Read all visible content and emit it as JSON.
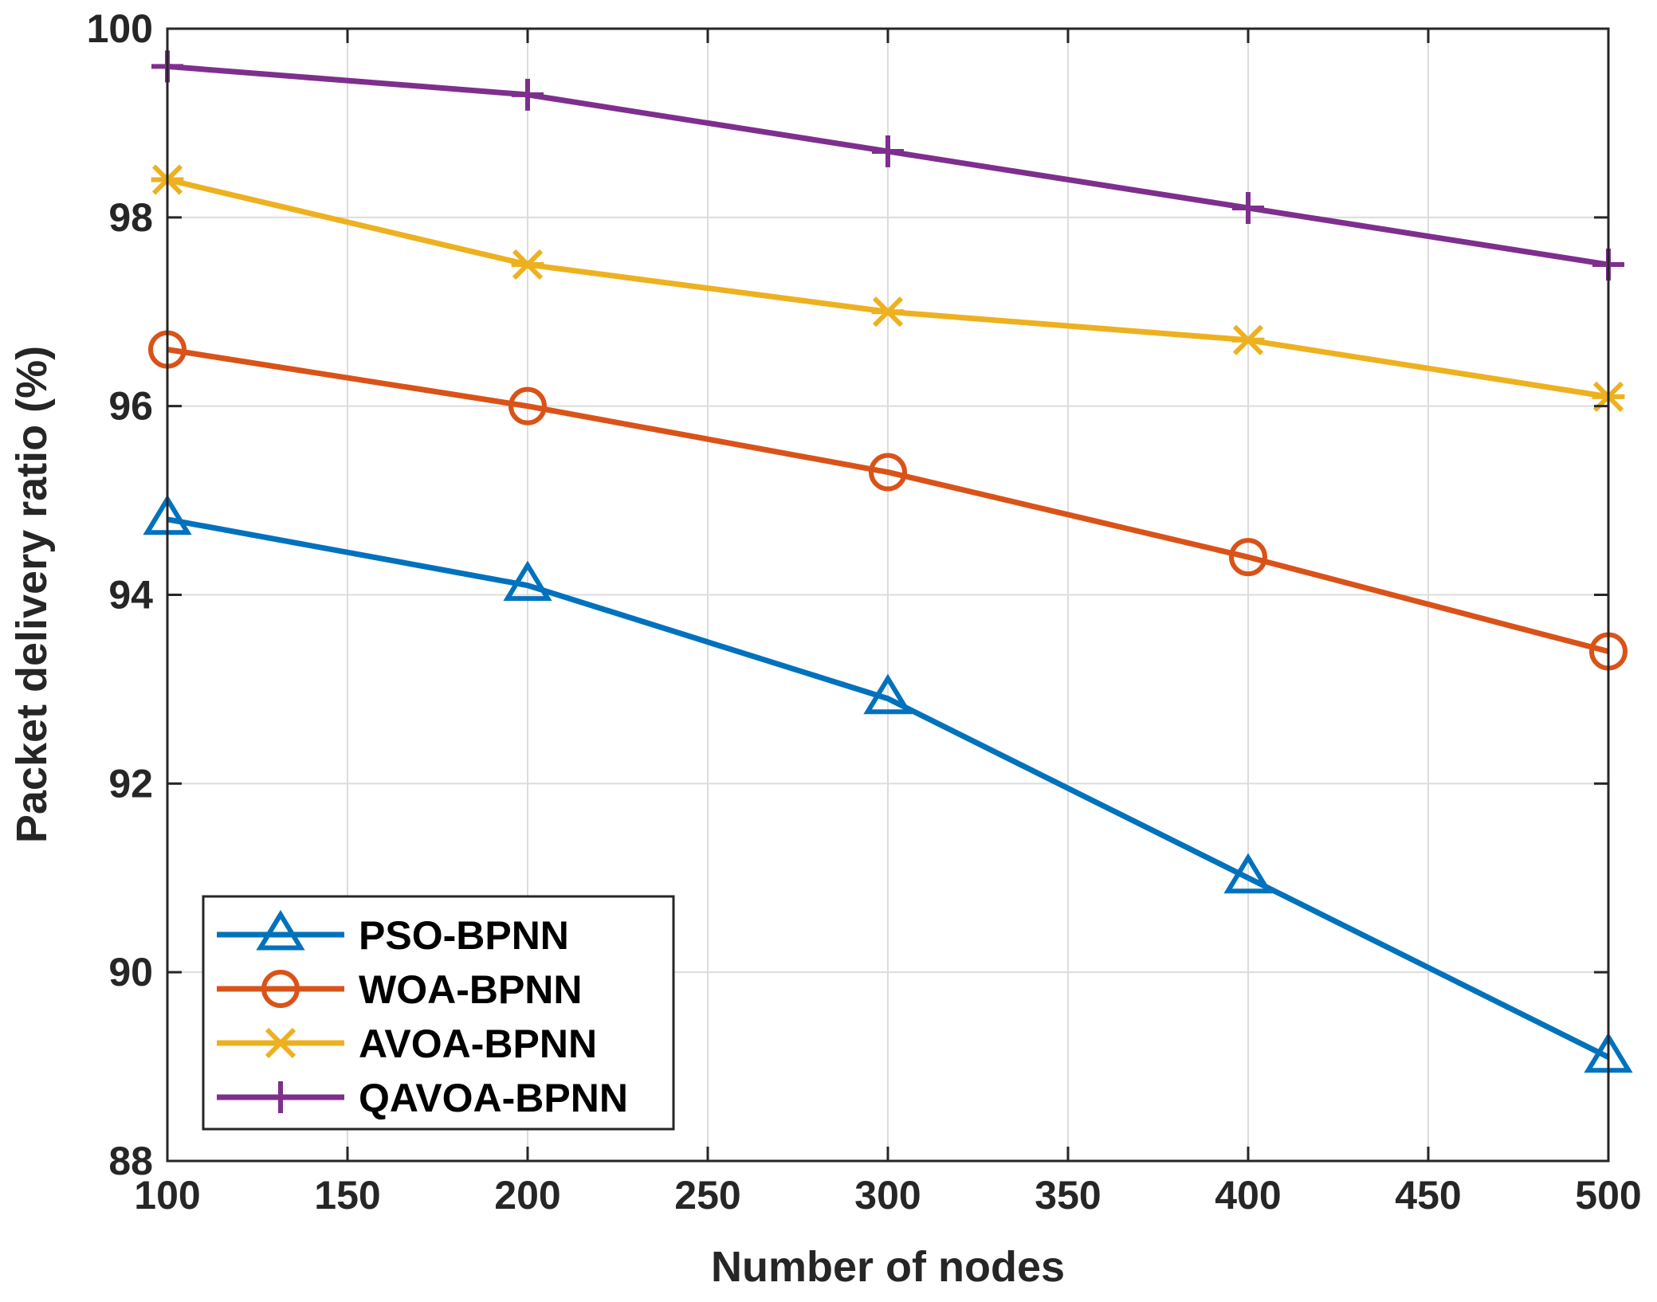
{
  "chart_data": {
    "type": "line",
    "title": "",
    "xlabel": "Number of nodes",
    "ylabel": "Packet delivery ratio (%)",
    "xlim": [
      100,
      500
    ],
    "ylim": [
      88,
      100
    ],
    "xticks": [
      100,
      150,
      200,
      250,
      300,
      350,
      400,
      450,
      500
    ],
    "yticks": [
      88,
      90,
      92,
      94,
      96,
      98,
      100
    ],
    "grid": true,
    "legend_position": "bottom-left",
    "x": [
      100,
      200,
      300,
      400,
      500
    ],
    "series": [
      {
        "name": "PSO-BPNN",
        "values": [
          94.8,
          94.1,
          92.9,
          91.0,
          89.1
        ],
        "color": "#0072BD",
        "marker": "triangle"
      },
      {
        "name": "WOA-BPNN",
        "values": [
          96.6,
          96.0,
          95.3,
          94.4,
          93.4
        ],
        "color": "#D95319",
        "marker": "circle"
      },
      {
        "name": "AVOA-BPNN",
        "values": [
          98.4,
          97.5,
          97.0,
          96.7,
          96.1
        ],
        "color": "#EDB120",
        "marker": "asterisk"
      },
      {
        "name": "QAVOA-BPNN",
        "values": [
          99.6,
          99.3,
          98.7,
          98.1,
          97.5
        ],
        "color": "#7E2F8E",
        "marker": "plus"
      }
    ]
  }
}
